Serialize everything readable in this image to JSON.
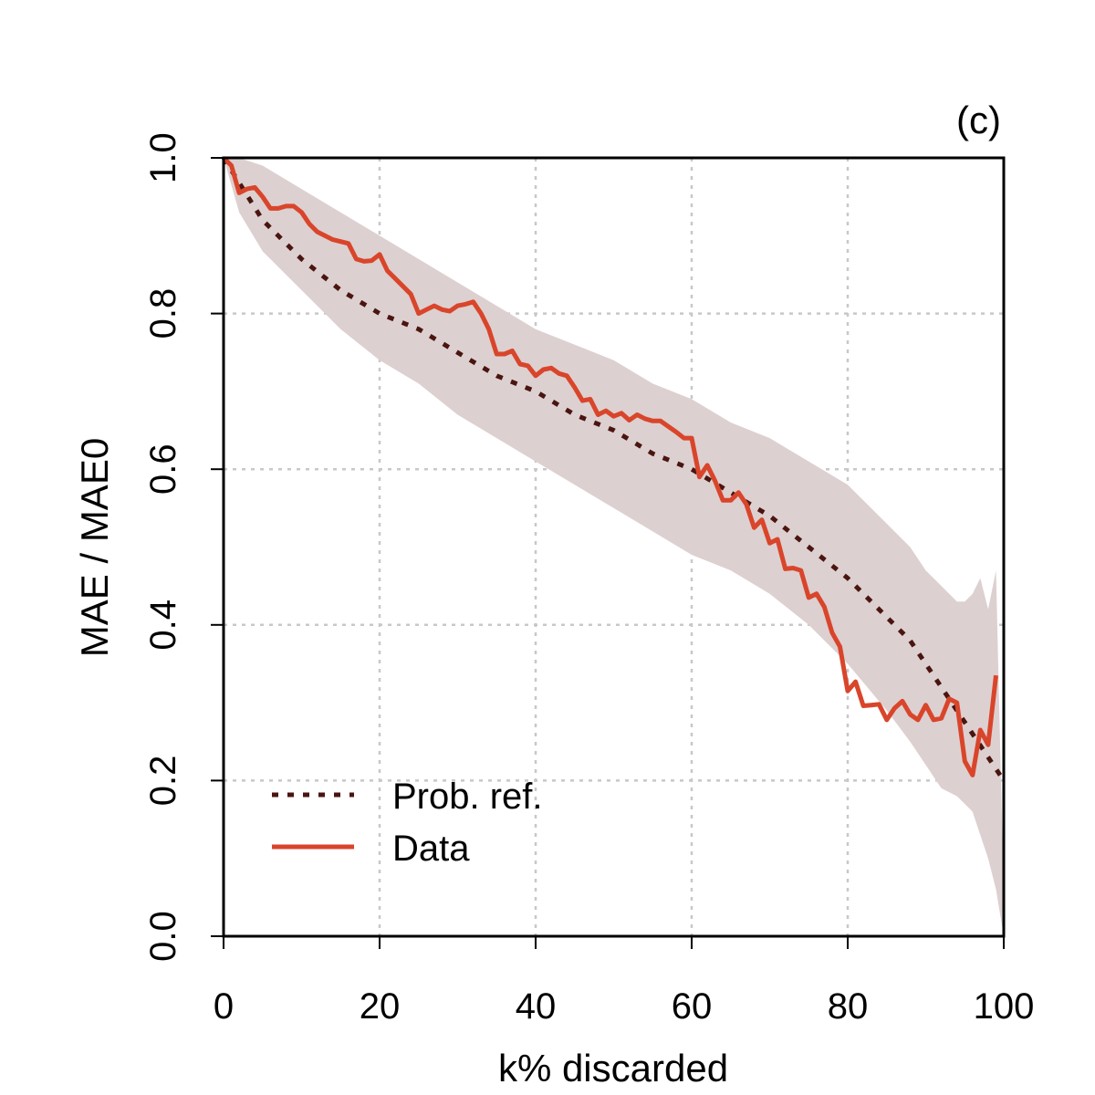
{
  "chart_data": {
    "type": "line",
    "panel_label": "(c)",
    "xlabel": "k% discarded",
    "ylabel": "MAE / MAE0",
    "xlim": [
      0,
      100
    ],
    "ylim": [
      0,
      1
    ],
    "xticks": [
      0,
      20,
      40,
      60,
      80,
      100
    ],
    "yticks": [
      0.0,
      0.2,
      0.4,
      0.6,
      0.8,
      1.0
    ],
    "xtick_labels": [
      "0",
      "20",
      "40",
      "60",
      "80",
      "100"
    ],
    "ytick_labels": [
      "0.0",
      "0.2",
      "0.4",
      "0.6",
      "0.8",
      "1.0"
    ],
    "grid": true,
    "legend_position": "bottom-left",
    "colors": {
      "reference": "#4a1510",
      "data": "#d9452b",
      "band": "#ddd0d0"
    },
    "band": {
      "name": "Prob. ref. interval",
      "x": [
        0,
        2,
        5,
        10,
        15,
        20,
        25,
        30,
        35,
        40,
        45,
        50,
        55,
        60,
        65,
        70,
        75,
        80,
        85,
        88,
        90,
        92,
        94,
        95,
        96,
        97,
        98,
        99,
        100
      ],
      "upper": [
        1.0,
        1.0,
        0.99,
        0.96,
        0.93,
        0.9,
        0.87,
        0.84,
        0.81,
        0.78,
        0.76,
        0.74,
        0.71,
        0.69,
        0.66,
        0.64,
        0.61,
        0.58,
        0.53,
        0.5,
        0.47,
        0.45,
        0.43,
        0.43,
        0.44,
        0.46,
        0.42,
        0.47,
        0.05
      ],
      "lower": [
        1.0,
        0.93,
        0.88,
        0.83,
        0.78,
        0.74,
        0.71,
        0.67,
        0.64,
        0.61,
        0.58,
        0.55,
        0.52,
        0.49,
        0.47,
        0.44,
        0.4,
        0.35,
        0.29,
        0.25,
        0.22,
        0.19,
        0.18,
        0.17,
        0.16,
        0.13,
        0.1,
        0.06,
        0.0
      ]
    },
    "series": [
      {
        "name": "Prob. ref.",
        "style": "dotted",
        "x": [
          0,
          5,
          10,
          15,
          20,
          25,
          30,
          35,
          40,
          45,
          50,
          55,
          60,
          65,
          70,
          75,
          80,
          85,
          88,
          90,
          92,
          94,
          96,
          98,
          100
        ],
        "y": [
          1.0,
          0.92,
          0.87,
          0.83,
          0.8,
          0.78,
          0.75,
          0.72,
          0.7,
          0.67,
          0.65,
          0.62,
          0.6,
          0.57,
          0.54,
          0.5,
          0.46,
          0.41,
          0.38,
          0.35,
          0.32,
          0.29,
          0.26,
          0.23,
          0.2
        ]
      },
      {
        "name": "Data",
        "style": "solid",
        "x": [
          0,
          1,
          2,
          3,
          4,
          5,
          6,
          7,
          8,
          9,
          10,
          11,
          12,
          14,
          16,
          17,
          18,
          19,
          20,
          21,
          22,
          24,
          25,
          26,
          27,
          28,
          29,
          30,
          31,
          32,
          33,
          34,
          35,
          36,
          37,
          38,
          39,
          40,
          41,
          42,
          43,
          44,
          45,
          46,
          47,
          48,
          49,
          50,
          51,
          52,
          53,
          54,
          55,
          56,
          57,
          58,
          59,
          60,
          61,
          62,
          63,
          64,
          65,
          66,
          67,
          68,
          69,
          70,
          71,
          72,
          73,
          74,
          75,
          76,
          77,
          78,
          79,
          80,
          81,
          82,
          83,
          84,
          85,
          86,
          87,
          88,
          89,
          90,
          91,
          92,
          93,
          94,
          95,
          96,
          97,
          98,
          99
        ],
        "y": [
          1.0,
          0.99,
          0.955,
          0.96,
          0.962,
          0.95,
          0.935,
          0.935,
          0.938,
          0.938,
          0.93,
          0.915,
          0.905,
          0.895,
          0.89,
          0.87,
          0.867,
          0.868,
          0.876,
          0.855,
          0.845,
          0.825,
          0.8,
          0.805,
          0.81,
          0.805,
          0.803,
          0.81,
          0.812,
          0.815,
          0.8,
          0.78,
          0.748,
          0.748,
          0.752,
          0.735,
          0.733,
          0.72,
          0.728,
          0.73,
          0.723,
          0.72,
          0.705,
          0.688,
          0.69,
          0.67,
          0.675,
          0.668,
          0.672,
          0.663,
          0.67,
          0.665,
          0.662,
          0.662,
          0.655,
          0.648,
          0.64,
          0.64,
          0.59,
          0.605,
          0.585,
          0.56,
          0.56,
          0.57,
          0.555,
          0.525,
          0.535,
          0.505,
          0.51,
          0.472,
          0.473,
          0.47,
          0.435,
          0.44,
          0.423,
          0.39,
          0.372,
          0.315,
          0.327,
          0.296,
          0.297,
          0.298,
          0.278,
          0.293,
          0.302,
          0.285,
          0.278,
          0.297,
          0.278,
          0.28,
          0.305,
          0.3,
          0.225,
          0.207,
          0.265,
          0.246,
          0.335
        ]
      }
    ]
  }
}
